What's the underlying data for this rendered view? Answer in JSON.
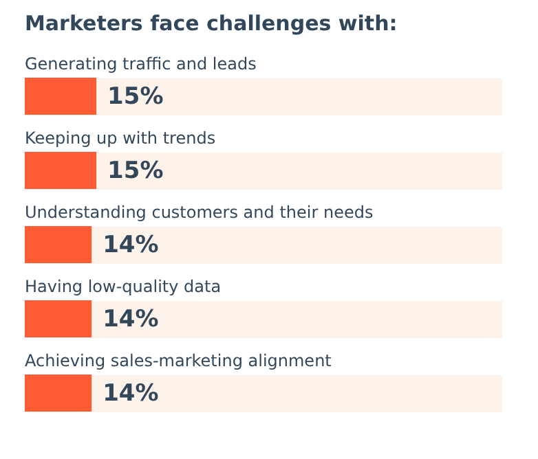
{
  "chart_data": {
    "type": "bar",
    "orientation": "horizontal",
    "title": "Marketers face challenges with:",
    "categories": [
      "Generating traffic and leads",
      "Keeping up with trends",
      "Understanding customers and their needs",
      "Having low-quality data",
      "Achieving sales-marketing alignment"
    ],
    "values": [
      15,
      15,
      14,
      14,
      14
    ],
    "value_labels": [
      "15%",
      "15%",
      "14%",
      "14%",
      "14%"
    ],
    "color": "#ff5c35",
    "xlim": [
      0,
      100
    ]
  }
}
